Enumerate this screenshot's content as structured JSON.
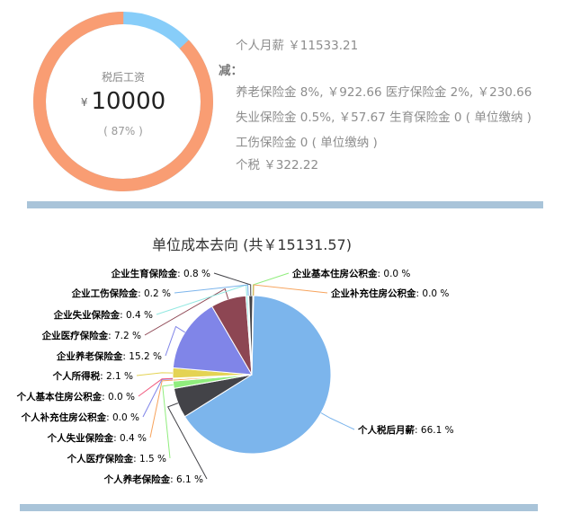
{
  "summary": {
    "ring_label": "税后工资",
    "currency_symbol": "¥",
    "net_salary": "10000",
    "net_percent": "( 87% )",
    "gross_line": "个人月薪 ￥11533.21",
    "minus_label": "减：",
    "deduction_line1": "养老保险金 8%, ￥922.66 医疗保险金 2%, ￥230.66",
    "deduction_line2": "失业保险金 0.5%, ￥57.67 生育保险金 0 ( 单位缴纳 )",
    "deduction_line3": "工伤保险金 0 ( 单位缴纳 )",
    "tax_line": "个税 ￥322.22",
    "ring_share": 0.87,
    "ring_colors": {
      "net": "#f99d73",
      "deductions": "#87cdf9"
    }
  },
  "chart_data": {
    "type": "pie",
    "title": "单位成本去向 (共￥15131.57)",
    "slices": [
      {
        "label": "个人税后月薪",
        "value": 66.1,
        "display": "66.1 %",
        "color": "#7cb5ec"
      },
      {
        "label": "个人养老保险金",
        "value": 6.1,
        "display": "6.1 %",
        "color": "#434348"
      },
      {
        "label": "个人医疗保险金",
        "value": 1.5,
        "display": "1.5 %",
        "color": "#90ed7d"
      },
      {
        "label": "个人失业保险金",
        "value": 0.4,
        "display": "0.4 %",
        "color": "#f7a35c"
      },
      {
        "label": "个人补充住房公积金",
        "value": 0.0,
        "display": "0.0 %",
        "color": "#8085e9"
      },
      {
        "label": "个人基本住房公积金",
        "value": 0.0,
        "display": "0.0 %",
        "color": "#f15c80"
      },
      {
        "label": "个人所得税",
        "value": 2.1,
        "display": "2.1 %",
        "color": "#e4d354"
      },
      {
        "label": "企业养老保险金",
        "value": 15.2,
        "display": "15.2 %",
        "color": "#8085e8"
      },
      {
        "label": "企业医疗保险金",
        "value": 7.2,
        "display": "7.2 %",
        "color": "#8d4653"
      },
      {
        "label": "企业失业保险金",
        "value": 0.4,
        "display": "0.4 %",
        "color": "#91e8e1"
      },
      {
        "label": "企业工伤保险金",
        "value": 0.2,
        "display": "0.2 %",
        "color": "#7cb5ec"
      },
      {
        "label": "企业生育保险金",
        "value": 0.8,
        "display": "0.8 %",
        "color": "#434348"
      },
      {
        "label": "企业基本住房公积金",
        "value": 0.0,
        "display": "0.0 %",
        "color": "#90ed7d"
      },
      {
        "label": "企业补充住房公积金",
        "value": 0.0,
        "display": "0.0 %",
        "color": "#f7a35c"
      }
    ]
  }
}
